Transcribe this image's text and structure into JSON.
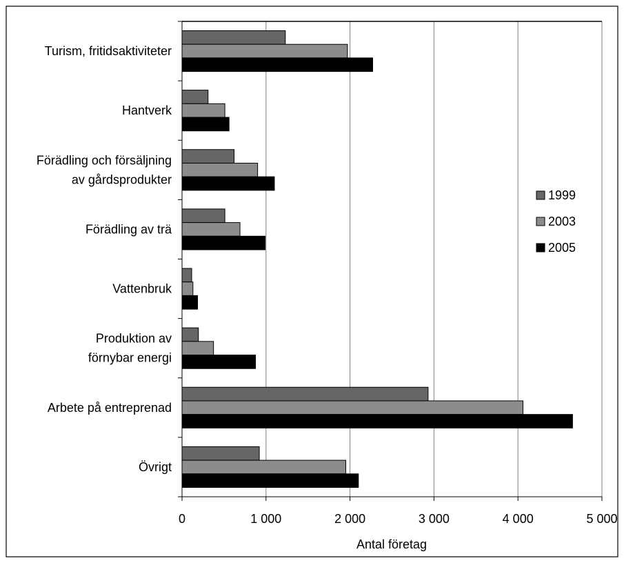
{
  "chart_data": {
    "type": "bar",
    "orientation": "horizontal",
    "categories": [
      [
        "Turism, fritidsaktiviteter"
      ],
      [
        "Hantverk"
      ],
      [
        "Förädling och försäljning",
        "av gårdsprodukter"
      ],
      [
        "Förädling av trä"
      ],
      [
        "Vattenbruk"
      ],
      [
        "Produktion av",
        "förnybar energi"
      ],
      [
        "Arbete på entreprenad"
      ],
      [
        "Övrigt"
      ]
    ],
    "series": [
      {
        "name": "1999",
        "color": "#666666",
        "values": [
          1230,
          310,
          620,
          510,
          115,
          195,
          2930,
          920
        ]
      },
      {
        "name": "2003",
        "color": "#8c8c8c",
        "values": [
          1970,
          510,
          900,
          690,
          130,
          375,
          4060,
          1950
        ]
      },
      {
        "name": "2005",
        "color": "#000000",
        "values": [
          2270,
          560,
          1100,
          990,
          185,
          875,
          4650,
          2100
        ]
      }
    ],
    "xlabel": "Antal företag",
    "ylabel": "",
    "xlim": [
      0,
      5000
    ],
    "xticks": [
      0,
      1000,
      2000,
      3000,
      4000,
      5000
    ],
    "xtick_labels": [
      "0",
      "1 000",
      "2 000",
      "3 000",
      "4 000",
      "5 000"
    ],
    "grid": "vertical",
    "legend_position": "right"
  }
}
